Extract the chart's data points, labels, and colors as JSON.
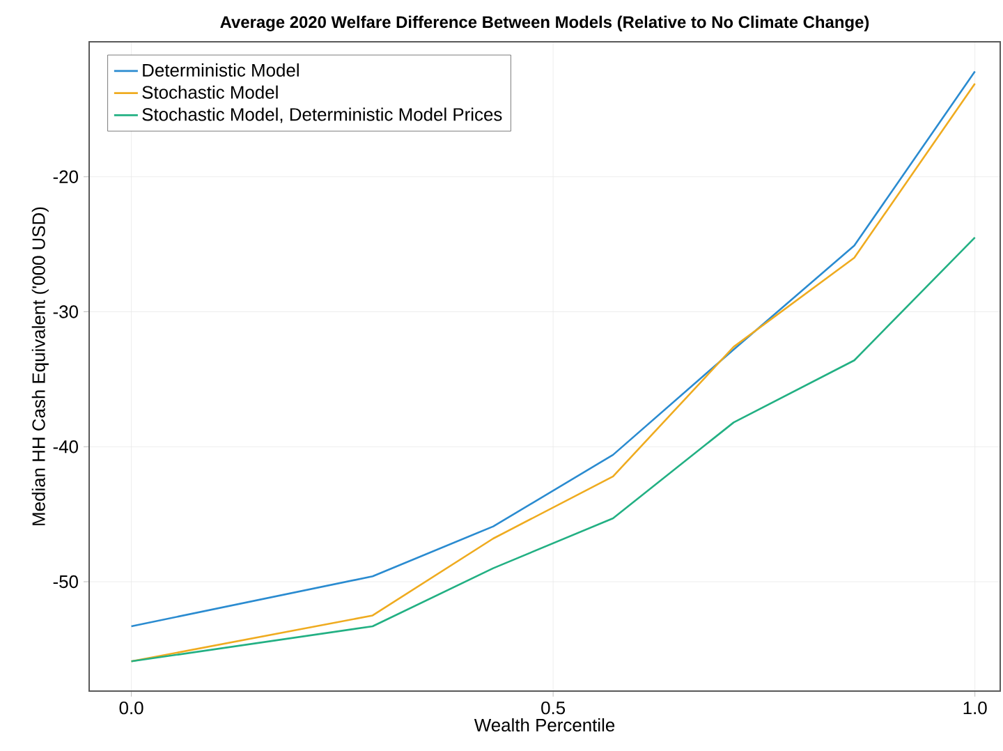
{
  "chart_data": {
    "type": "line",
    "title": "Average 2020 Welfare Difference Between Models (Relative to No Climate Change)",
    "xlabel": "Wealth Percentile",
    "ylabel": "Median HH Cash Equivalent ('000 USD)",
    "x": [
      0,
      0.286,
      0.429,
      0.571,
      0.714,
      0.857,
      1
    ],
    "series": [
      {
        "name": "Deterministic Model",
        "color": "#2a8bd0",
        "values": [
          -53.3,
          -49.6,
          -45.9,
          -40.6,
          -32.8,
          -25.1,
          -12.2
        ]
      },
      {
        "name": "Stochastic Model",
        "color": "#efab1f",
        "values": [
          -55.9,
          -52.5,
          -46.8,
          -42.2,
          -32.6,
          -26.0,
          -13.1
        ]
      },
      {
        "name": "Stochastic Model, Deterministic Model Prices",
        "color": "#22b083",
        "values": [
          -55.9,
          -53.3,
          -49.0,
          -45.3,
          -38.2,
          -33.6,
          -24.5
        ]
      }
    ],
    "xlim": [
      -0.05,
      1.03
    ],
    "ylim": [
      -58.1,
      -10
    ],
    "xticks": [
      {
        "value": 0,
        "label": "0.0"
      },
      {
        "value": 0.5,
        "label": "0.5"
      },
      {
        "value": 1,
        "label": "1.0"
      }
    ],
    "yticks": [
      -50,
      -40,
      -30,
      -20
    ],
    "grid": true,
    "legend": "top left",
    "line_style": "solid",
    "marker": "none"
  }
}
